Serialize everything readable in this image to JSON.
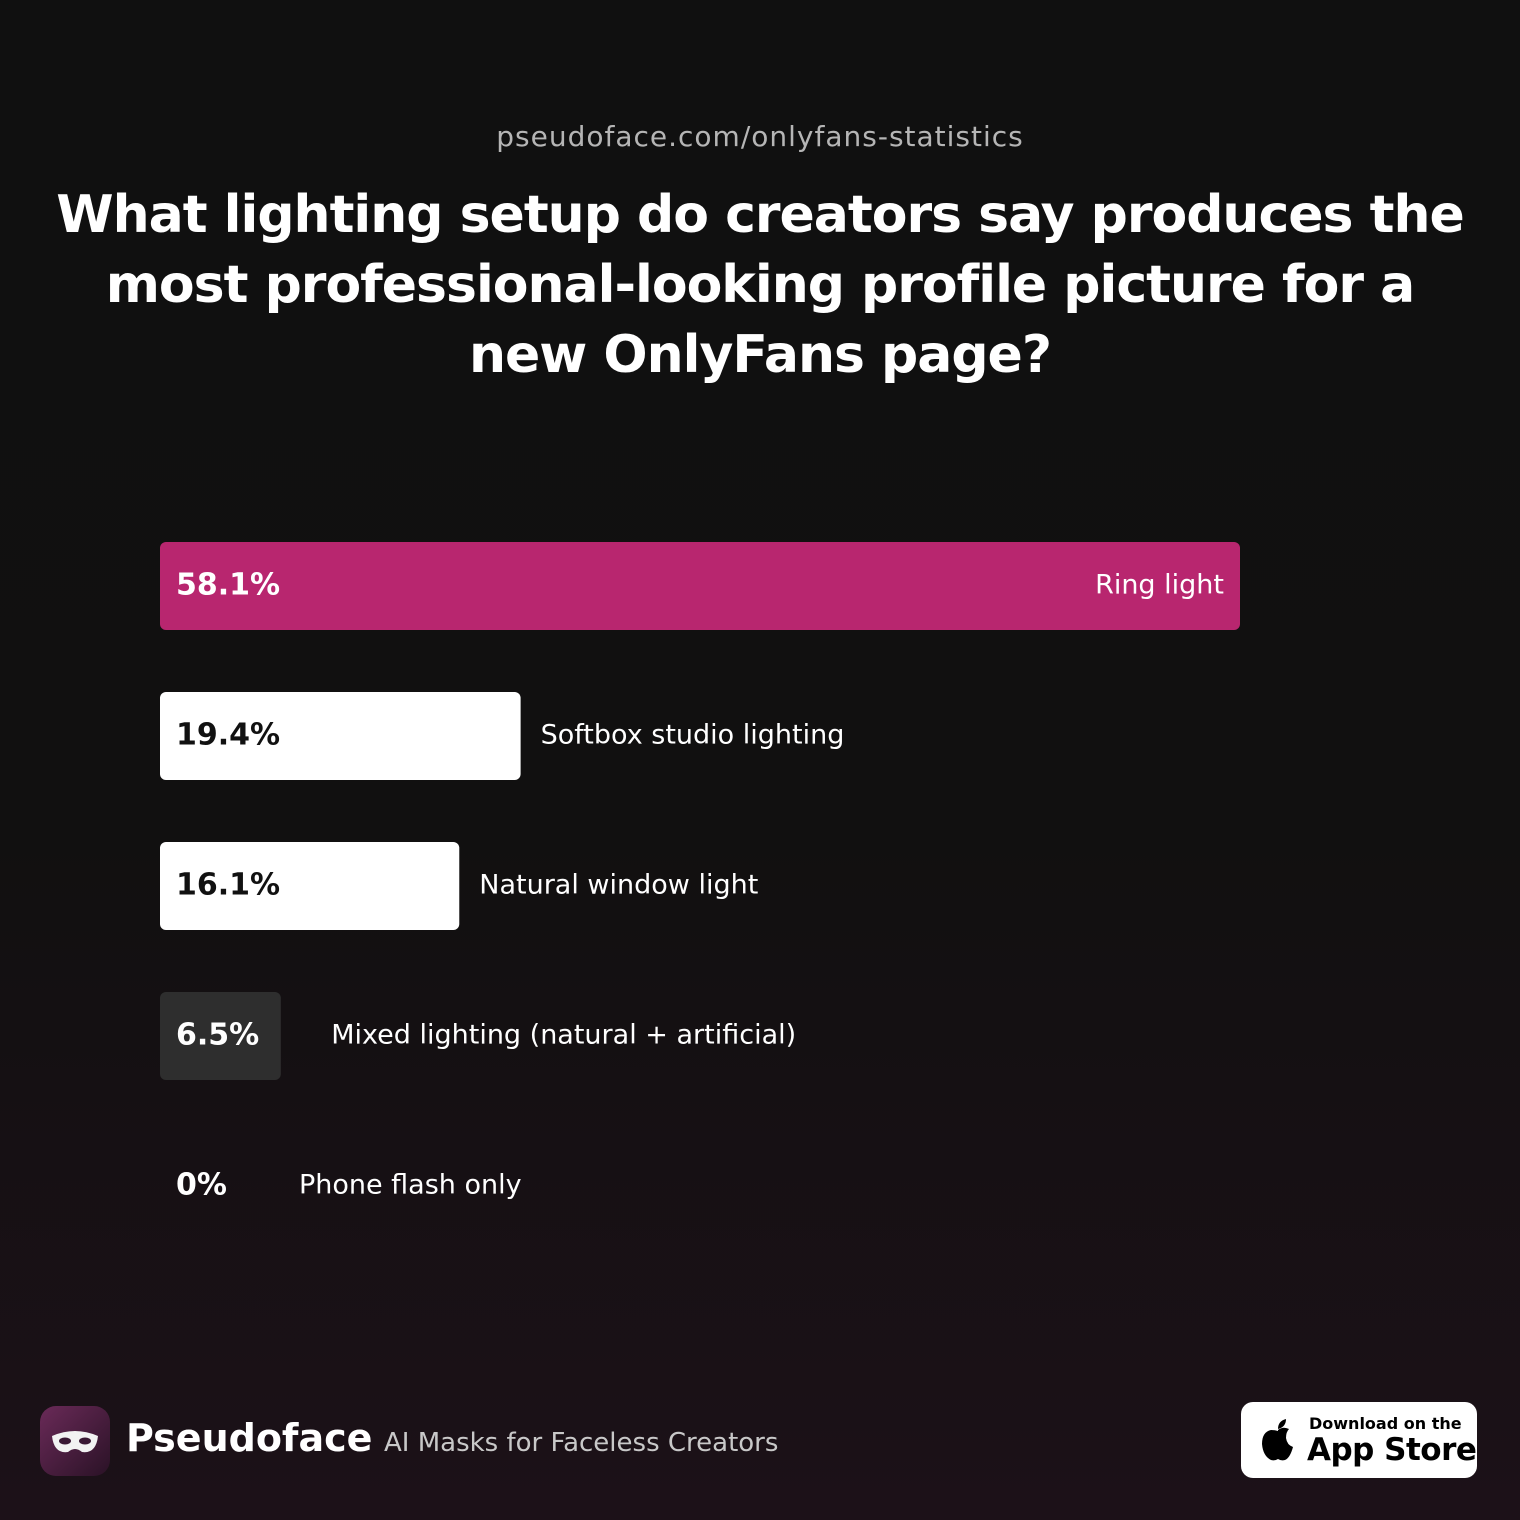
{
  "source": "pseudoface.com/onlyfans-statistics",
  "chart_data": {
    "type": "bar",
    "orientation": "horizontal",
    "title": "What lighting setup do creators say produces the most professional-looking profile picture for a new OnlyFans page?",
    "categories": [
      "Ring light",
      "Softbox studio lighting",
      "Natural window light",
      "Mixed lighting (natural + artificial)",
      "Phone flash only"
    ],
    "values": [
      58.1,
      19.4,
      16.1,
      6.5,
      0
    ],
    "value_labels": [
      "58.1%",
      "19.4%",
      "16.1%",
      "6.5%",
      "0%"
    ],
    "colors": [
      "#b8266f",
      "#ffffff",
      "#ffffff",
      "#2e2e2e",
      "#2e2e2e"
    ]
  },
  "footer": {
    "brand": "Pseudoface",
    "tagline": "AI Masks for Faceless Creators",
    "badge_small": "Download on the",
    "badge_large": "App Store"
  }
}
